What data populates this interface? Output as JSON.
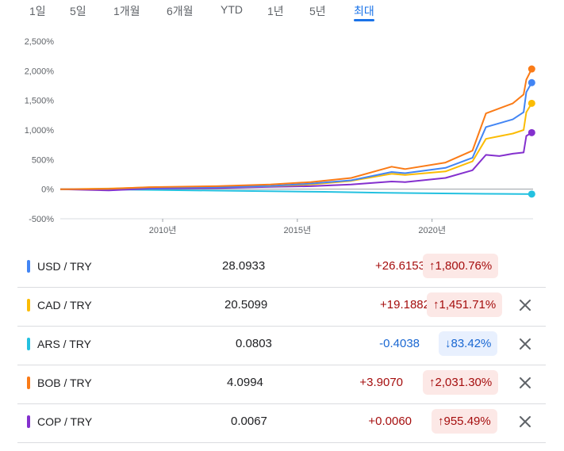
{
  "range_tabs": [
    {
      "label": "1일",
      "active": false
    },
    {
      "label": "5일",
      "active": false
    },
    {
      "label": "1개월",
      "active": false
    },
    {
      "label": "6개월",
      "active": false
    },
    {
      "label": "YTD",
      "active": false
    },
    {
      "label": "1년",
      "active": false
    },
    {
      "label": "5년",
      "active": false
    },
    {
      "label": "최대",
      "active": true
    }
  ],
  "chart_data": {
    "type": "line",
    "y_unit": "%",
    "ylim": [
      -500,
      2500
    ],
    "y_ticks": [
      "2,500%",
      "2,000%",
      "1,500%",
      "1,000%",
      "500%",
      "0%",
      "-500%"
    ],
    "x_ticks": [
      "2010년",
      "2015년",
      "2020년"
    ],
    "grid": false,
    "series": [
      {
        "name": "USD / TRY",
        "color": "#4285f4",
        "x": [
          2006.2,
          2008,
          2009.5,
          2012,
          2014,
          2015.5,
          2017,
          2018.5,
          2019,
          2020.5,
          2021.5,
          2022.0,
          2023.0,
          2023.4,
          2023.5,
          2023.7
        ],
        "y": [
          0,
          5,
          25,
          35,
          55,
          95,
          150,
          290,
          270,
          360,
          530,
          1050,
          1180,
          1300,
          1640,
          1800
        ]
      },
      {
        "name": "CAD / TRY",
        "color": "#fbbc04",
        "x": [
          2006.2,
          2008,
          2009.5,
          2012,
          2014,
          2015.5,
          2017,
          2018.5,
          2019,
          2020.5,
          2021.5,
          2022.0,
          2023.0,
          2023.4,
          2023.5,
          2023.7
        ],
        "y": [
          0,
          10,
          30,
          40,
          50,
          80,
          140,
          260,
          240,
          300,
          470,
          850,
          940,
          1000,
          1300,
          1451
        ]
      },
      {
        "name": "ARS / TRY",
        "color": "#24c1e0",
        "x": [
          2006.2,
          2008,
          2010,
          2012,
          2014,
          2016,
          2018,
          2020,
          2022,
          2023.7
        ],
        "y": [
          0,
          -5,
          -15,
          -25,
          -35,
          -45,
          -60,
          -70,
          -78,
          -83
        ]
      },
      {
        "name": "BOB / TRY",
        "color": "#fa7b17",
        "x": [
          2006.2,
          2008,
          2009.5,
          2012,
          2014,
          2015.5,
          2017,
          2018.5,
          2019,
          2020.5,
          2021.5,
          2022.0,
          2023.0,
          2023.4,
          2023.5,
          2023.7
        ],
        "y": [
          0,
          5,
          35,
          50,
          80,
          120,
          190,
          380,
          340,
          450,
          650,
          1280,
          1450,
          1600,
          1850,
          2031
        ]
      },
      {
        "name": "COP / TRY",
        "color": "#8430ce",
        "x": [
          2006.2,
          2008,
          2009.5,
          2012,
          2014,
          2015.5,
          2017,
          2018.5,
          2019,
          2020.5,
          2021.5,
          2022.0,
          2022.5,
          2023.0,
          2023.4,
          2023.5,
          2023.7
        ],
        "y": [
          0,
          -20,
          10,
          20,
          40,
          50,
          80,
          130,
          120,
          190,
          320,
          580,
          560,
          600,
          620,
          900,
          955
        ]
      }
    ]
  },
  "rows": [
    {
      "pair": "USD / TRY",
      "color": "#4285f4",
      "price": "28.0933",
      "change": "+26.6153",
      "direction": "up",
      "pct": "↑1,800.76%",
      "removable": false
    },
    {
      "pair": "CAD / TRY",
      "color": "#fbbc04",
      "price": "20.5099",
      "change": "+19.1882",
      "direction": "up",
      "pct": "↑1,451.71%",
      "removable": true
    },
    {
      "pair": "ARS / TRY",
      "color": "#24c1e0",
      "price": "0.0803",
      "change": "-0.4038",
      "direction": "down",
      "pct": "↓83.42%",
      "removable": true
    },
    {
      "pair": "BOB / TRY",
      "color": "#fa7b17",
      "price": "4.0994",
      "change": "+3.9070",
      "direction": "up",
      "pct": "↑2,031.30%",
      "removable": true
    },
    {
      "pair": "COP / TRY",
      "color": "#8430ce",
      "price": "0.0067",
      "change": "+0.0060",
      "direction": "up",
      "pct": "↑955.49%",
      "removable": true
    }
  ]
}
